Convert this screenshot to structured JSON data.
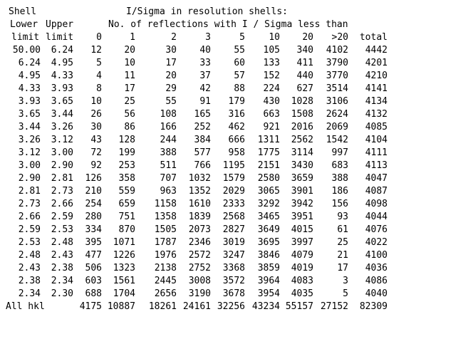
{
  "header": {
    "shell_label": "Shell",
    "title": "I/Sigma in resolution shells:",
    "lower_label": "Lower",
    "upper_label": "Upper",
    "subtitle": "No. of reflections with I / Sigma less than",
    "limit_lower": "limit",
    "limit_upper": "limit",
    "columns": [
      "0",
      "1",
      "2",
      "3",
      "5",
      "10",
      "20",
      ">20",
      "total"
    ]
  },
  "rows": [
    {
      "lower": "50.00",
      "upper": "6.24",
      "counts": [
        "12",
        "20",
        "30",
        "40",
        "55",
        "105",
        "340",
        "4102",
        "4442"
      ]
    },
    {
      "lower": "6.24",
      "upper": "4.95",
      "counts": [
        "5",
        "10",
        "17",
        "33",
        "60",
        "133",
        "411",
        "3790",
        "4201"
      ]
    },
    {
      "lower": "4.95",
      "upper": "4.33",
      "counts": [
        "4",
        "11",
        "20",
        "37",
        "57",
        "152",
        "440",
        "3770",
        "4210"
      ]
    },
    {
      "lower": "4.33",
      "upper": "3.93",
      "counts": [
        "8",
        "17",
        "29",
        "42",
        "88",
        "224",
        "627",
        "3514",
        "4141"
      ]
    },
    {
      "lower": "3.93",
      "upper": "3.65",
      "counts": [
        "10",
        "25",
        "55",
        "91",
        "179",
        "430",
        "1028",
        "3106",
        "4134"
      ]
    },
    {
      "lower": "3.65",
      "upper": "3.44",
      "counts": [
        "26",
        "56",
        "108",
        "165",
        "316",
        "663",
        "1508",
        "2624",
        "4132"
      ]
    },
    {
      "lower": "3.44",
      "upper": "3.26",
      "counts": [
        "30",
        "86",
        "166",
        "252",
        "462",
        "921",
        "2016",
        "2069",
        "4085"
      ]
    },
    {
      "lower": "3.26",
      "upper": "3.12",
      "counts": [
        "43",
        "128",
        "244",
        "384",
        "666",
        "1311",
        "2562",
        "1542",
        "4104"
      ]
    },
    {
      "lower": "3.12",
      "upper": "3.00",
      "counts": [
        "72",
        "199",
        "388",
        "577",
        "958",
        "1775",
        "3114",
        "997",
        "4111"
      ]
    },
    {
      "lower": "3.00",
      "upper": "2.90",
      "counts": [
        "92",
        "253",
        "511",
        "766",
        "1195",
        "2151",
        "3430",
        "683",
        "4113"
      ]
    },
    {
      "lower": "2.90",
      "upper": "2.81",
      "counts": [
        "126",
        "358",
        "707",
        "1032",
        "1579",
        "2580",
        "3659",
        "388",
        "4047"
      ]
    },
    {
      "lower": "2.81",
      "upper": "2.73",
      "counts": [
        "210",
        "559",
        "963",
        "1352",
        "2029",
        "3065",
        "3901",
        "186",
        "4087"
      ]
    },
    {
      "lower": "2.73",
      "upper": "2.66",
      "counts": [
        "254",
        "659",
        "1158",
        "1610",
        "2333",
        "3292",
        "3942",
        "156",
        "4098"
      ]
    },
    {
      "lower": "2.66",
      "upper": "2.59",
      "counts": [
        "280",
        "751",
        "1358",
        "1839",
        "2568",
        "3465",
        "3951",
        "93",
        "4044"
      ]
    },
    {
      "lower": "2.59",
      "upper": "2.53",
      "counts": [
        "334",
        "870",
        "1505",
        "2073",
        "2827",
        "3649",
        "4015",
        "61",
        "4076"
      ]
    },
    {
      "lower": "2.53",
      "upper": "2.48",
      "counts": [
        "395",
        "1071",
        "1787",
        "2346",
        "3019",
        "3695",
        "3997",
        "25",
        "4022"
      ]
    },
    {
      "lower": "2.48",
      "upper": "2.43",
      "counts": [
        "477",
        "1226",
        "1976",
        "2572",
        "3247",
        "3846",
        "4079",
        "21",
        "4100"
      ]
    },
    {
      "lower": "2.43",
      "upper": "2.38",
      "counts": [
        "506",
        "1323",
        "2138",
        "2752",
        "3368",
        "3859",
        "4019",
        "17",
        "4036"
      ]
    },
    {
      "lower": "2.38",
      "upper": "2.34",
      "counts": [
        "603",
        "1561",
        "2445",
        "3008",
        "3572",
        "3964",
        "4083",
        "3",
        "4086"
      ]
    },
    {
      "lower": "2.34",
      "upper": "2.30",
      "counts": [
        "688",
        "1704",
        "2656",
        "3190",
        "3678",
        "3954",
        "4035",
        "5",
        "4040"
      ]
    }
  ],
  "totals": {
    "label": "All hkl",
    "counts": [
      "4175",
      "10887",
      "18261",
      "24161",
      "32256",
      "43234",
      "55157",
      "27152",
      "82309"
    ]
  }
}
